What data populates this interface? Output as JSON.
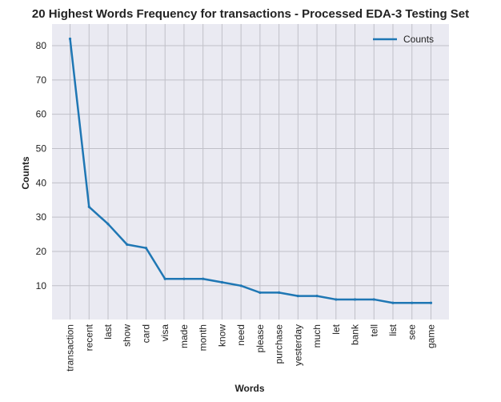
{
  "chart_data": {
    "type": "line",
    "title": "20 Highest Words Frequency for transactions - Processed EDA-3 Testing Set",
    "xlabel": "Words",
    "ylabel": "Counts",
    "categories": [
      "transaction",
      "recent",
      "last",
      "show",
      "card",
      "visa",
      "made",
      "month",
      "know",
      "need",
      "please",
      "purchase",
      "yesterday",
      "much",
      "let",
      "bank",
      "tell",
      "list",
      "see",
      "game"
    ],
    "series": [
      {
        "name": "Counts",
        "values": [
          82,
          33,
          28,
          22,
          21,
          12,
          12,
          12,
          11,
          10,
          8,
          8,
          7,
          7,
          6,
          6,
          6,
          5,
          5,
          5
        ]
      }
    ],
    "yticks": [
      10,
      20,
      30,
      40,
      50,
      60,
      70,
      80
    ],
    "ylim": [
      0.15,
      86.3
    ],
    "grid": true,
    "legend_position": "top-right",
    "colors": {
      "line": "#1f77b4",
      "plot_background": "#eaeaf2",
      "grid": "#c0c0c8"
    }
  }
}
